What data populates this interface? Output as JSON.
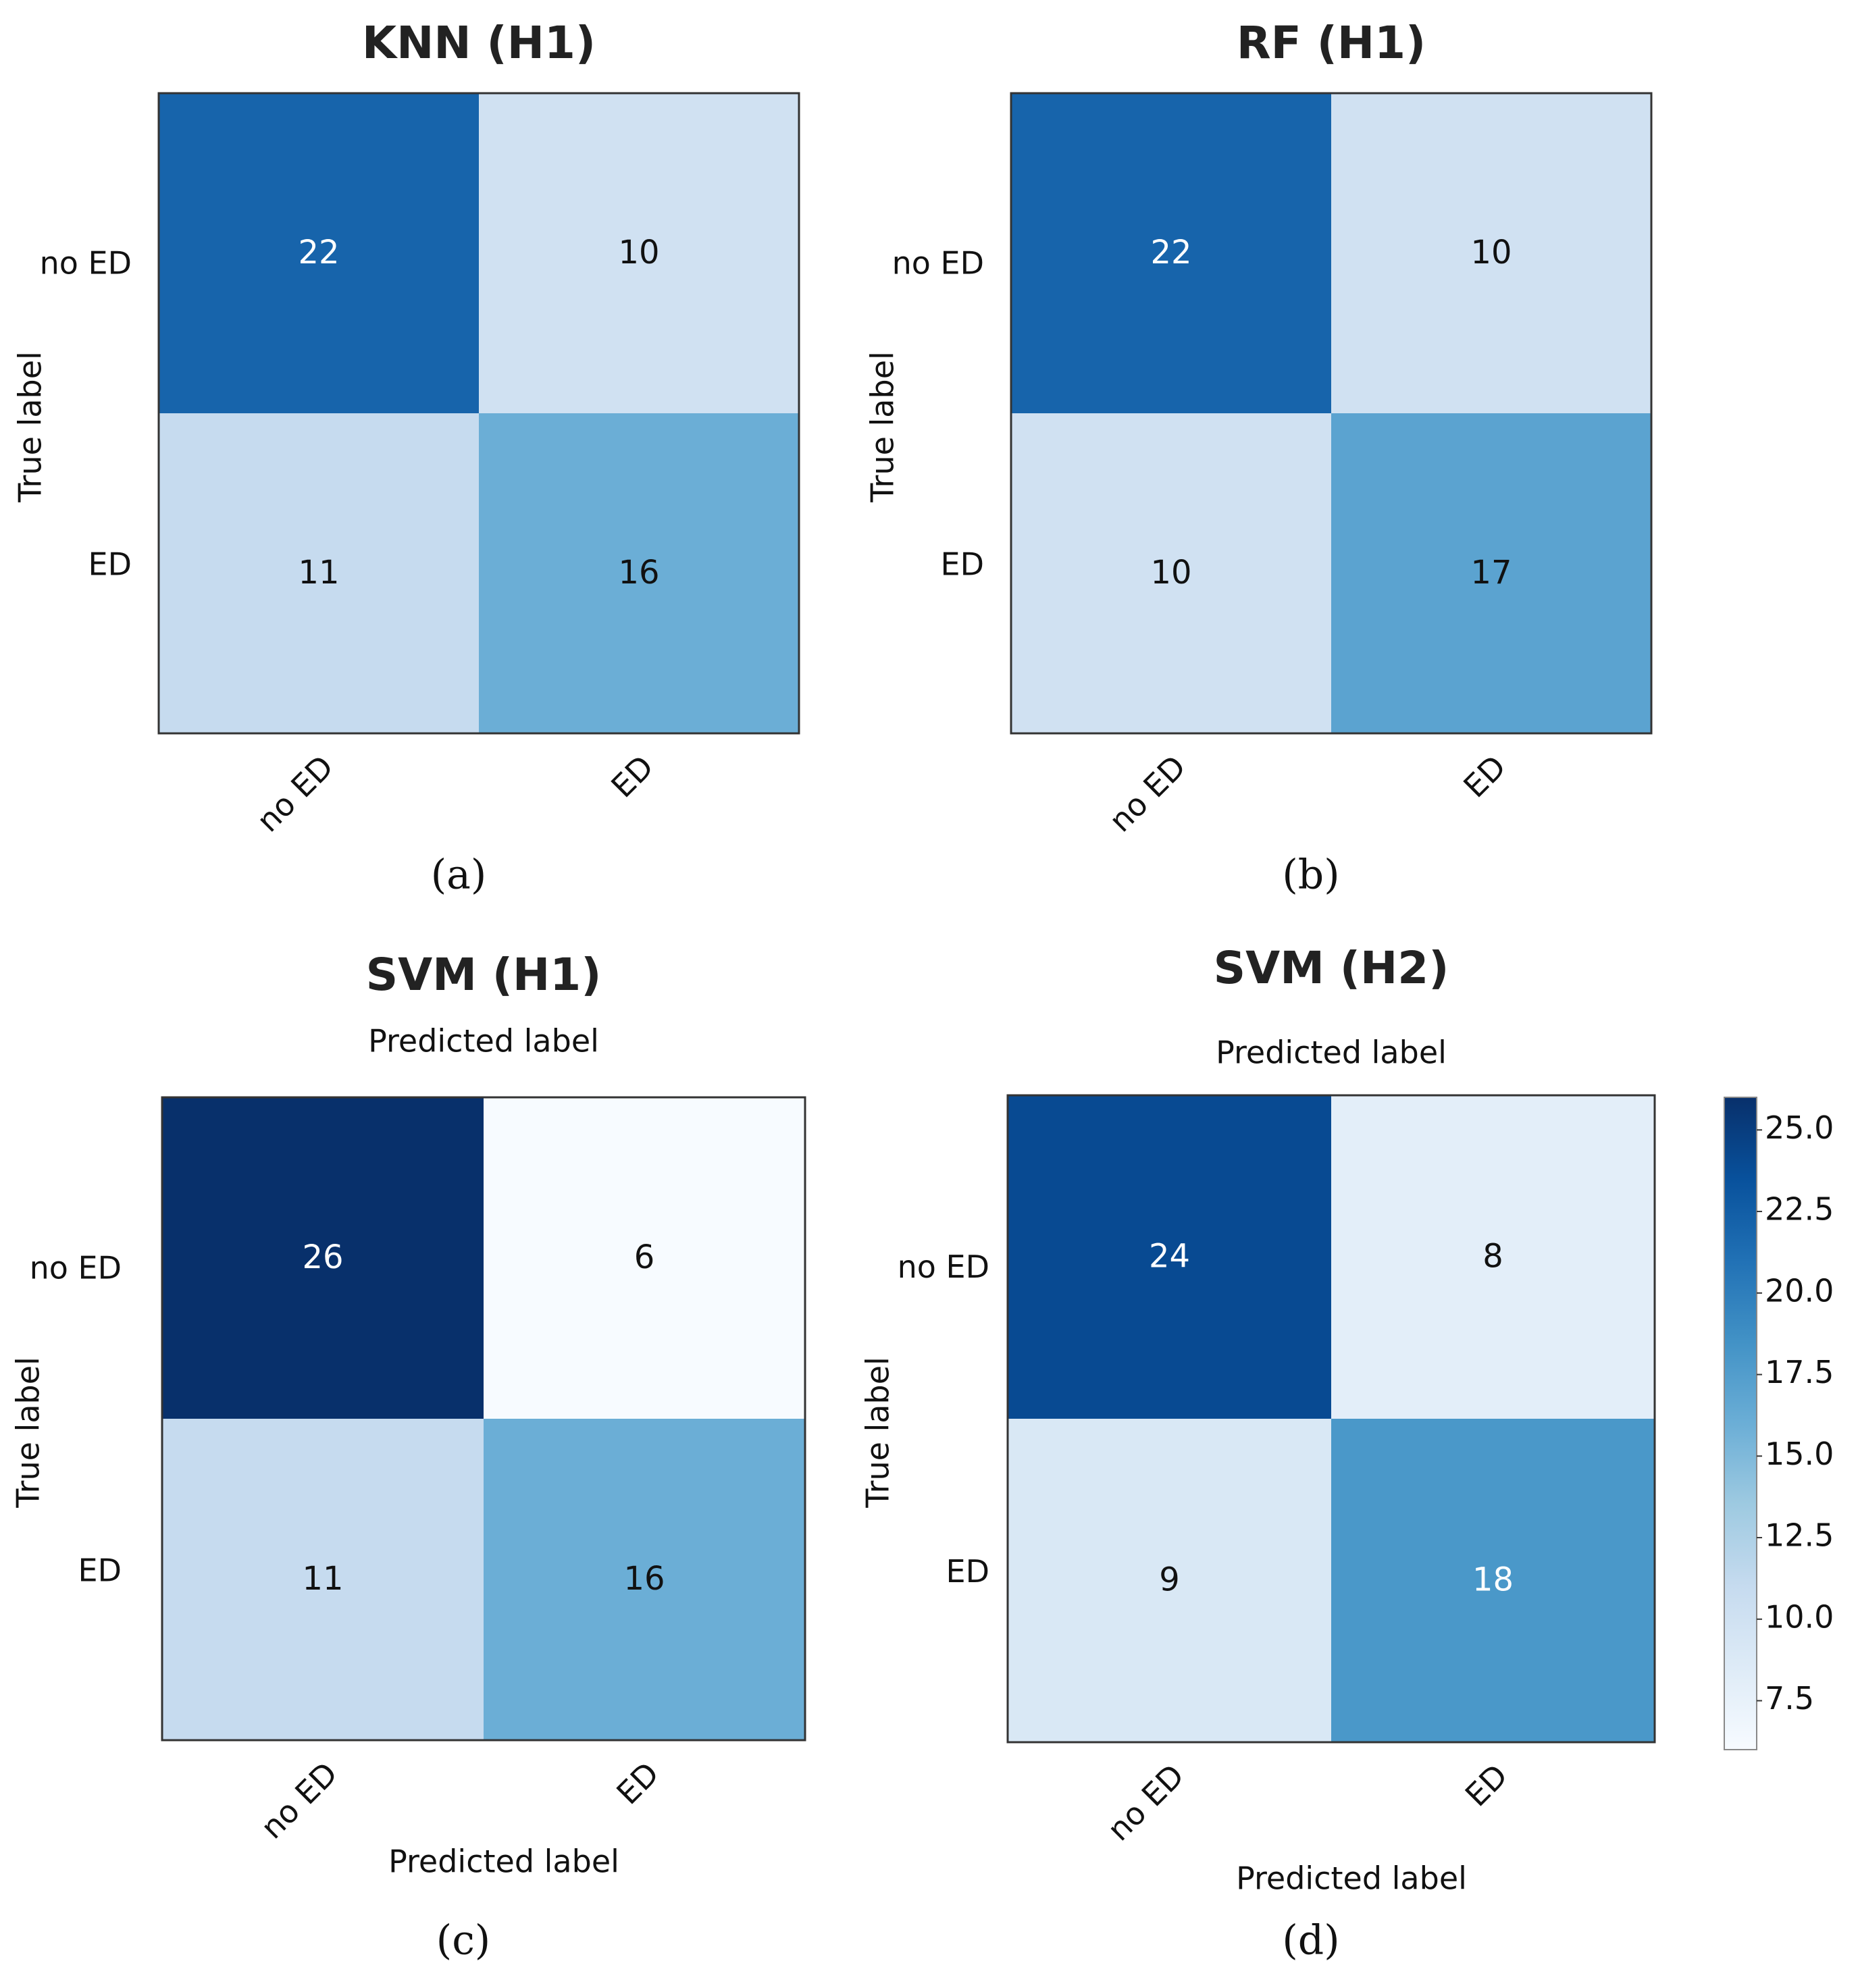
{
  "chart_data": [
    {
      "type": "heatmap",
      "title": "KNN (H1)",
      "caption": "(a)",
      "rows": [
        "no ED",
        "ED"
      ],
      "cols": [
        "no ED",
        "ED"
      ],
      "values": [
        [
          22,
          10
        ],
        [
          11,
          16
        ]
      ],
      "ylabel": "True label",
      "xlabel_top": "",
      "xlabel_bottom": ""
    },
    {
      "type": "heatmap",
      "title": "RF (H1)",
      "caption": "(b)",
      "rows": [
        "no ED",
        "ED"
      ],
      "cols": [
        "no ED",
        "ED"
      ],
      "values": [
        [
          22,
          10
        ],
        [
          10,
          17
        ]
      ],
      "ylabel": "True label",
      "xlabel_top": "",
      "xlabel_bottom": ""
    },
    {
      "type": "heatmap",
      "title": "SVM (H1)",
      "caption": "(c)",
      "rows": [
        "no ED",
        "ED"
      ],
      "cols": [
        "no ED",
        "ED"
      ],
      "values": [
        [
          26,
          6
        ],
        [
          11,
          16
        ]
      ],
      "ylabel": "True label",
      "xlabel_top": "Predicted label",
      "xlabel_bottom": "Predicted label"
    },
    {
      "type": "heatmap",
      "title": "SVM (H2)",
      "caption": "(d)",
      "rows": [
        "no ED",
        "ED"
      ],
      "cols": [
        "no ED",
        "ED"
      ],
      "values": [
        [
          24,
          8
        ],
        [
          9,
          18
        ]
      ],
      "ylabel": "True label",
      "xlabel_top": "Predicted label",
      "xlabel_bottom": "Predicted label"
    }
  ],
  "colorbar": {
    "min": 6,
    "max": 26,
    "ticks": [
      7.5,
      10.0,
      12.5,
      15.0,
      17.5,
      20.0,
      22.5,
      25.0
    ],
    "tick_labels": [
      "7.5",
      "10.0",
      "12.5",
      "15.0",
      "17.5",
      "20.0",
      "22.5",
      "25.0"
    ],
    "colormap": "Blues",
    "stops": [
      "#f7fbff",
      "#deebf7",
      "#c6dbef",
      "#9ecae1",
      "#6baed6",
      "#4292c6",
      "#2171b5",
      "#08519c",
      "#08306b"
    ]
  }
}
